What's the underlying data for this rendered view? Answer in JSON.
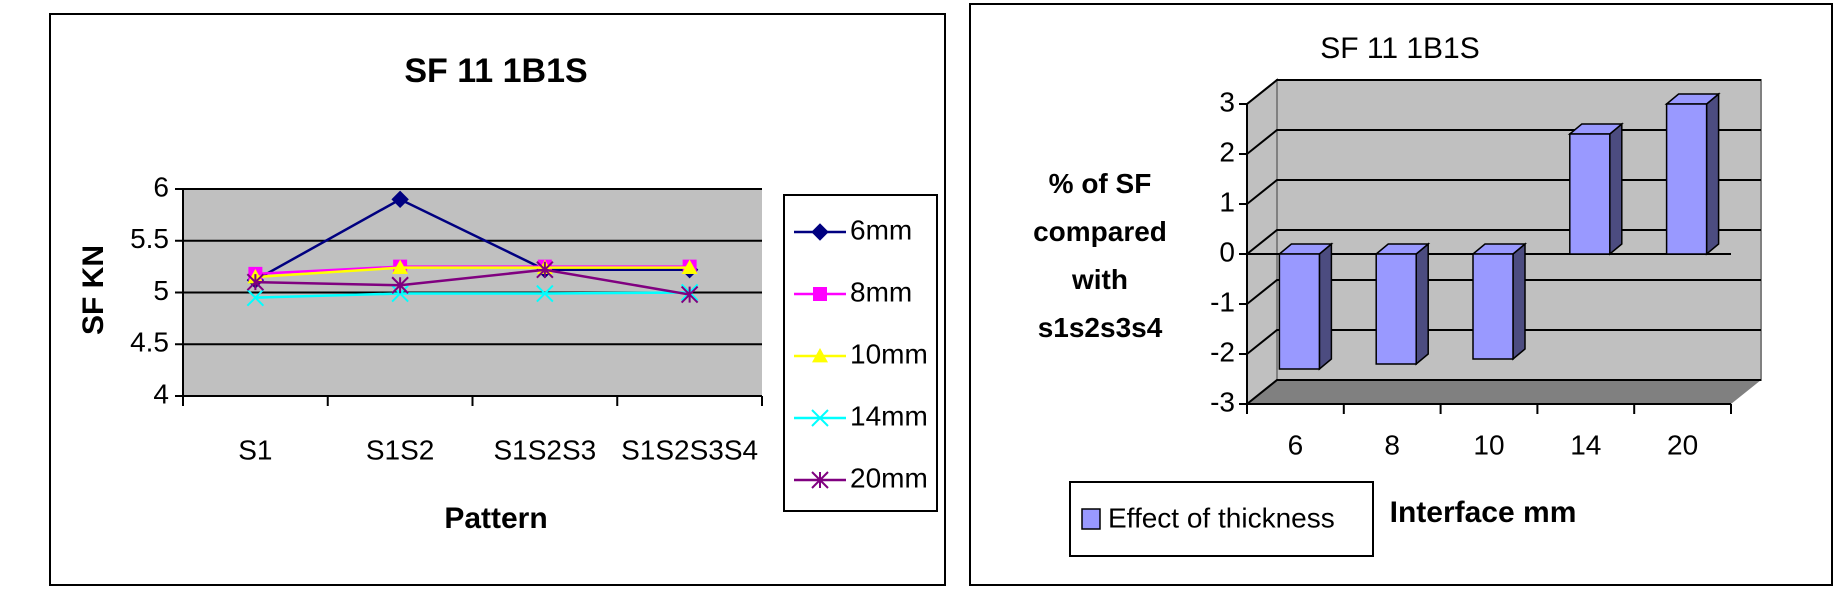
{
  "chart_data": [
    {
      "type": "line",
      "title": "SF 11 1B1S",
      "y_label": "SF  KN",
      "x_label": "Pattern",
      "categories": [
        "S1",
        "S1S2",
        "S1S2S3",
        "S1S2S3S4"
      ],
      "ylim": [
        4,
        6
      ],
      "yticks": [
        4,
        4.5,
        5,
        5.5,
        6
      ],
      "grid": true,
      "legend": "right",
      "series": [
        {
          "name": "6mm",
          "color": "#000080",
          "marker": "diamond",
          "values": [
            5.12,
            5.9,
            5.22,
            5.22
          ]
        },
        {
          "name": "8mm",
          "color": "#ff00ff",
          "marker": "square",
          "values": [
            5.18,
            5.25,
            5.25,
            5.25
          ]
        },
        {
          "name": "10mm",
          "color": "#ffff00",
          "marker": "triangle",
          "values": [
            5.15,
            5.24,
            5.24,
            5.24
          ]
        },
        {
          "name": "14mm",
          "color": "#00ffff",
          "marker": "x",
          "values": [
            4.95,
            4.99,
            4.99,
            5.0
          ]
        },
        {
          "name": "20mm",
          "color": "#800080",
          "marker": "star",
          "values": [
            5.1,
            5.07,
            5.22,
            4.98
          ]
        }
      ]
    },
    {
      "type": "bar3d",
      "title": "SF 11 1B1S",
      "y_label": "% of SF compared with s1s2s3s4",
      "x_label": "Interface mm",
      "categories": [
        "6",
        "8",
        "10",
        "14",
        "20"
      ],
      "ylim": [
        -3,
        3
      ],
      "yticks": [
        -3,
        -2,
        -1,
        0,
        1,
        2,
        3
      ],
      "grid": true,
      "legend": "bottom-left",
      "series": [
        {
          "name": "Effect of thickness",
          "color": "#9999ff",
          "values": [
            -2.3,
            -2.2,
            -2.1,
            2.4,
            3.0
          ]
        }
      ]
    }
  ]
}
